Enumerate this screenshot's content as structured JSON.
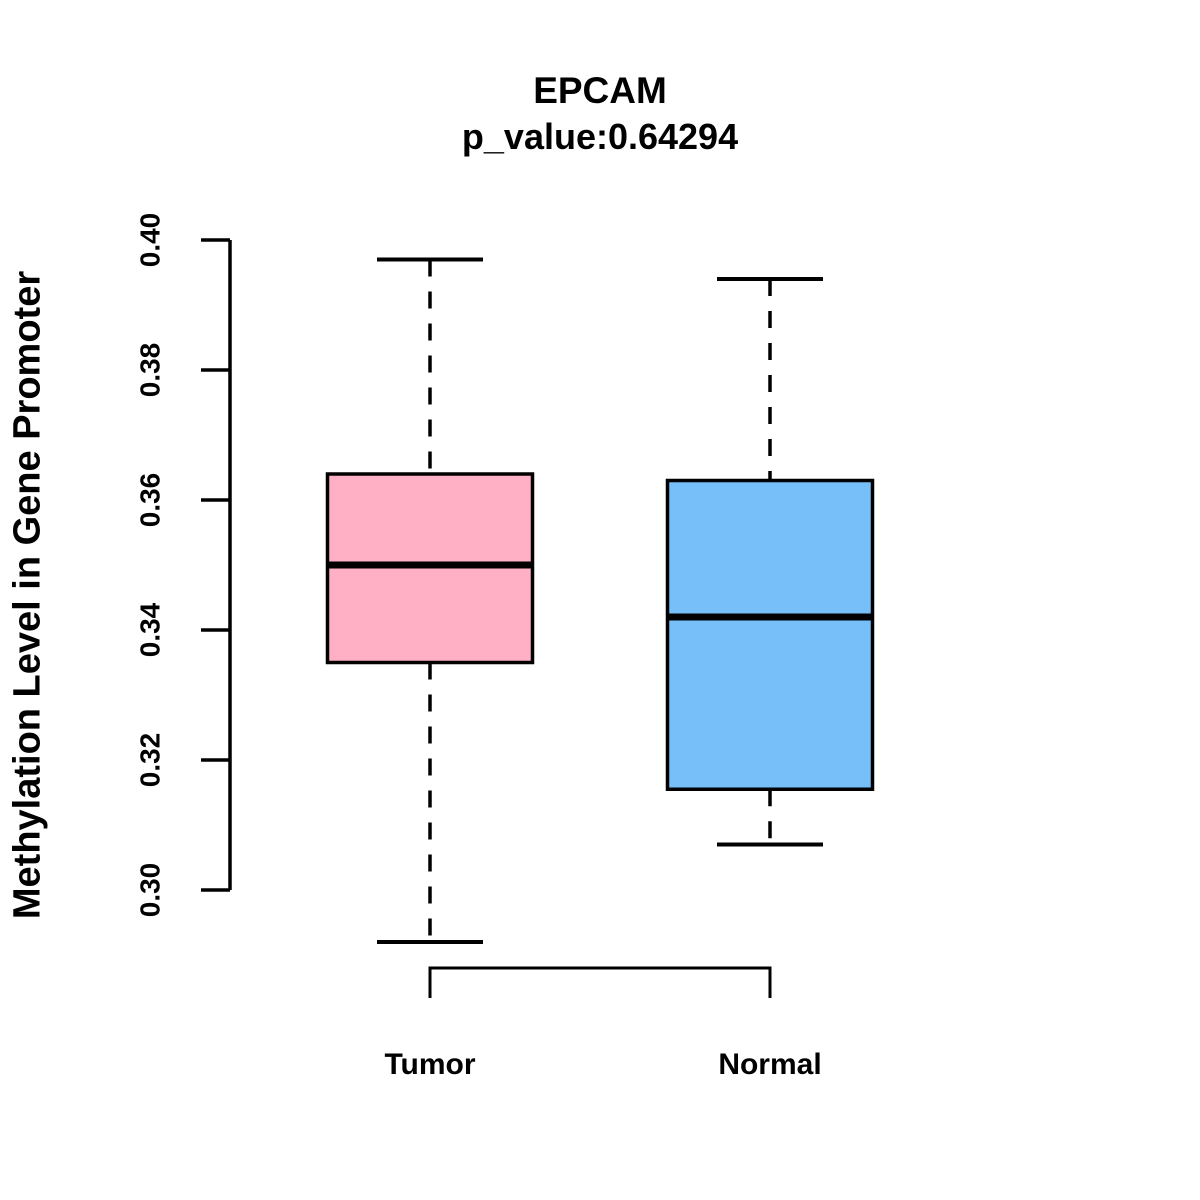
{
  "chart_data": {
    "type": "boxplot",
    "title": "EPCAM",
    "subtitle": "p_value:0.64294",
    "p_value": 0.64294,
    "ylabel": "Methylation Level in Gene Promoter",
    "xlabel": "",
    "ylim": [
      0.3,
      0.4
    ],
    "ytick_values": [
      0.3,
      0.32,
      0.34,
      0.36,
      0.38,
      0.4
    ],
    "yticks": [
      "0.30",
      "0.32",
      "0.34",
      "0.36",
      "0.38",
      "0.40"
    ],
    "grid": false,
    "legend": "none",
    "categories": [
      "Tumor",
      "Normal"
    ],
    "series": [
      {
        "name": "Tumor",
        "color": "#FFB0C5",
        "whisker_low": 0.292,
        "q1": 0.335,
        "median": 0.35,
        "q3": 0.364,
        "whisker_high": 0.397
      },
      {
        "name": "Normal",
        "color": "#76BFF8",
        "whisker_low": 0.307,
        "q1": 0.3155,
        "median": 0.342,
        "q3": 0.363,
        "whisker_high": 0.394
      }
    ]
  }
}
